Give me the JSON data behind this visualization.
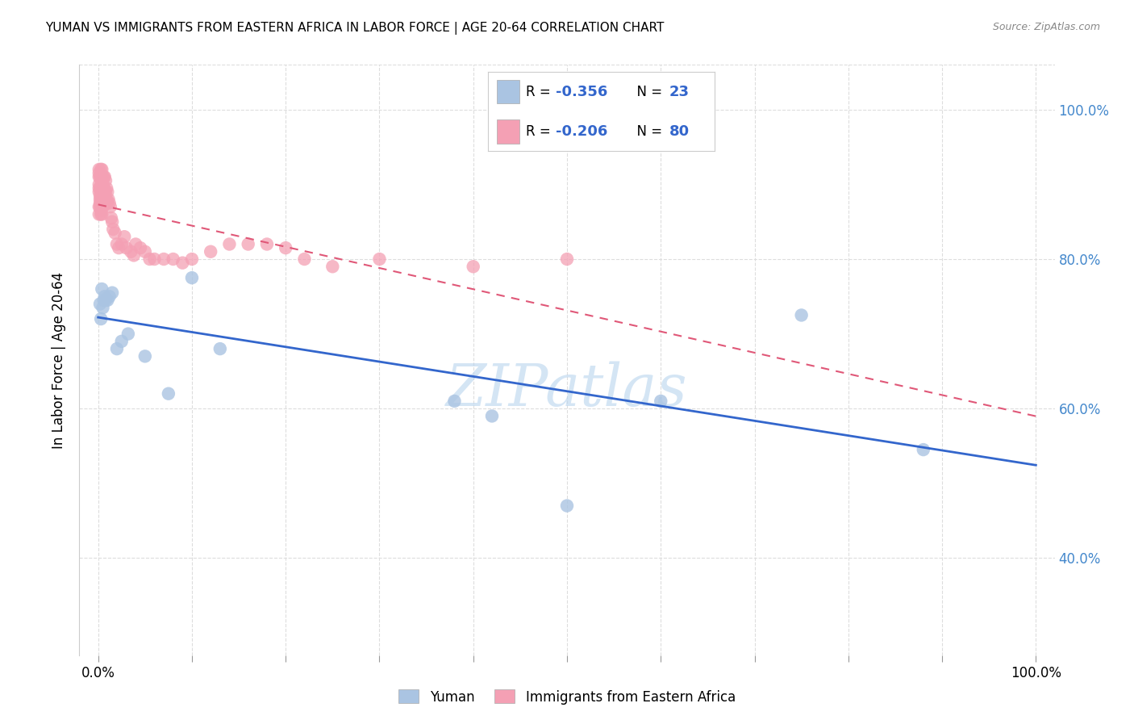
{
  "title": "YUMAN VS IMMIGRANTS FROM EASTERN AFRICA IN LABOR FORCE | AGE 20-64 CORRELATION CHART",
  "source": "Source: ZipAtlas.com",
  "ylabel": "In Labor Force | Age 20-64",
  "xlim": [
    -0.02,
    1.02
  ],
  "ylim": [
    0.27,
    1.06
  ],
  "yuman_R": -0.356,
  "yuman_N": 23,
  "eastern_africa_R": -0.206,
  "eastern_africa_N": 80,
  "yuman_color": "#aac4e2",
  "eastern_africa_color": "#f4a0b4",
  "yuman_line_color": "#3366cc",
  "eastern_africa_line_color": "#e05878",
  "watermark": "ZIPatlas",
  "background_color": "#ffffff",
  "grid_color": "#dddddd",
  "ytick_color": "#4488cc",
  "legend_text_color": "#3366cc",
  "yuman_x": [
    0.002,
    0.003,
    0.004,
    0.005,
    0.006,
    0.007,
    0.008,
    0.01,
    0.012,
    0.015,
    0.02,
    0.025,
    0.032,
    0.05,
    0.075,
    0.1,
    0.13,
    0.38,
    0.42,
    0.5,
    0.6,
    0.75,
    0.88
  ],
  "yuman_y": [
    0.74,
    0.72,
    0.76,
    0.735,
    0.745,
    0.75,
    0.745,
    0.745,
    0.75,
    0.755,
    0.68,
    0.69,
    0.7,
    0.67,
    0.62,
    0.775,
    0.68,
    0.61,
    0.59,
    0.47,
    0.61,
    0.725,
    0.545
  ],
  "eastern_africa_x": [
    0.001,
    0.001,
    0.001,
    0.001,
    0.001,
    0.001,
    0.001,
    0.001,
    0.002,
    0.002,
    0.002,
    0.002,
    0.002,
    0.002,
    0.003,
    0.003,
    0.003,
    0.003,
    0.003,
    0.003,
    0.003,
    0.003,
    0.003,
    0.004,
    0.004,
    0.004,
    0.004,
    0.004,
    0.004,
    0.005,
    0.005,
    0.005,
    0.005,
    0.005,
    0.006,
    0.006,
    0.006,
    0.007,
    0.007,
    0.007,
    0.008,
    0.008,
    0.008,
    0.009,
    0.009,
    0.01,
    0.01,
    0.011,
    0.012,
    0.013,
    0.014,
    0.015,
    0.016,
    0.018,
    0.02,
    0.022,
    0.025,
    0.028,
    0.03,
    0.035,
    0.038,
    0.04,
    0.045,
    0.05,
    0.055,
    0.06,
    0.07,
    0.08,
    0.09,
    0.1,
    0.12,
    0.14,
    0.16,
    0.18,
    0.2,
    0.22,
    0.25,
    0.3,
    0.4,
    0.5
  ],
  "eastern_africa_y": [
    0.87,
    0.86,
    0.89,
    0.895,
    0.9,
    0.91,
    0.915,
    0.92,
    0.87,
    0.875,
    0.88,
    0.885,
    0.895,
    0.91,
    0.86,
    0.865,
    0.87,
    0.875,
    0.88,
    0.89,
    0.905,
    0.91,
    0.92,
    0.86,
    0.87,
    0.88,
    0.895,
    0.91,
    0.92,
    0.87,
    0.88,
    0.895,
    0.9,
    0.91,
    0.88,
    0.895,
    0.91,
    0.88,
    0.89,
    0.91,
    0.875,
    0.89,
    0.905,
    0.88,
    0.895,
    0.875,
    0.89,
    0.88,
    0.875,
    0.87,
    0.855,
    0.85,
    0.84,
    0.835,
    0.82,
    0.815,
    0.82,
    0.83,
    0.815,
    0.81,
    0.805,
    0.82,
    0.815,
    0.81,
    0.8,
    0.8,
    0.8,
    0.8,
    0.795,
    0.8,
    0.81,
    0.82,
    0.82,
    0.82,
    0.815,
    0.8,
    0.79,
    0.8,
    0.79,
    0.8
  ],
  "xtick_positions": [
    0.0,
    0.1,
    0.2,
    0.3,
    0.4,
    0.5,
    0.6,
    0.7,
    0.8,
    0.9,
    1.0
  ],
  "ytick_positions": [
    0.4,
    0.6,
    0.8,
    1.0
  ],
  "ytick_labels": [
    "40.0%",
    "60.0%",
    "80.0%",
    "100.0%"
  ]
}
